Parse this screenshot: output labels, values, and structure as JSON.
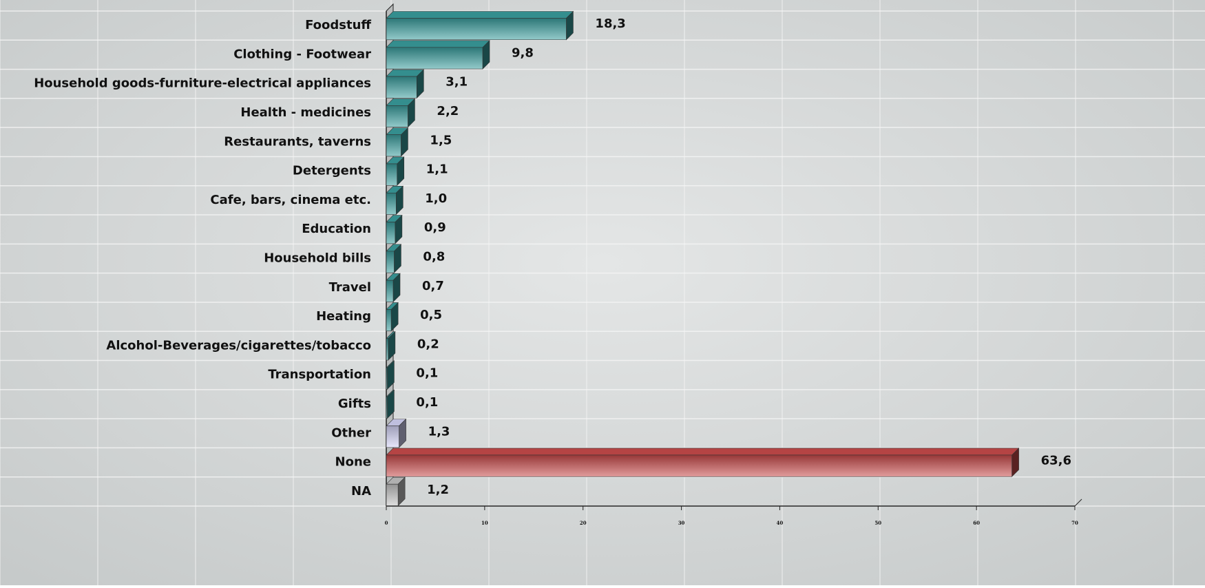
{
  "chart_data": {
    "type": "bar",
    "orientation": "horizontal",
    "categories": [
      "Foodstuff",
      "Clothing - Footwear",
      "Household goods-furniture-electrical appliances",
      "Health - medicines",
      "Restaurants, taverns",
      "Detergents",
      "Cafe, bars, cinema etc.",
      "Education",
      "Household bills",
      "Travel",
      "Heating",
      "Alcohol-Beverages/cigarettes/tobacco",
      "Transportation",
      "Gifts",
      "Other",
      "None",
      "NA"
    ],
    "values": [
      18.3,
      9.8,
      3.1,
      2.2,
      1.5,
      1.1,
      1.0,
      0.9,
      0.8,
      0.7,
      0.5,
      0.2,
      0.1,
      0.1,
      1.3,
      63.6,
      1.2
    ],
    "value_labels": [
      "18,3",
      "9,8",
      "3,1",
      "2,2",
      "1,5",
      "1,1",
      "1,0",
      "0,9",
      "0,8",
      "0,7",
      "0,5",
      "0,2",
      "0,1",
      "0,1",
      "1,3",
      "63,6",
      "1,2"
    ],
    "colors": [
      "#3a9e9e",
      "#3a9e9e",
      "#3a9e9e",
      "#3a9e9e",
      "#3a9e9e",
      "#3a9e9e",
      "#3a9e9e",
      "#3a9e9e",
      "#3a9e9e",
      "#3a9e9e",
      "#3a9e9e",
      "#3a9e9e",
      "#3a9e9e",
      "#3a9e9e",
      "#d4d4f7",
      "#c94b4b",
      "#c4c4c4"
    ],
    "xlim": [
      0,
      70
    ],
    "xticks": [
      0,
      10,
      20,
      30,
      40,
      50,
      60,
      70
    ]
  }
}
